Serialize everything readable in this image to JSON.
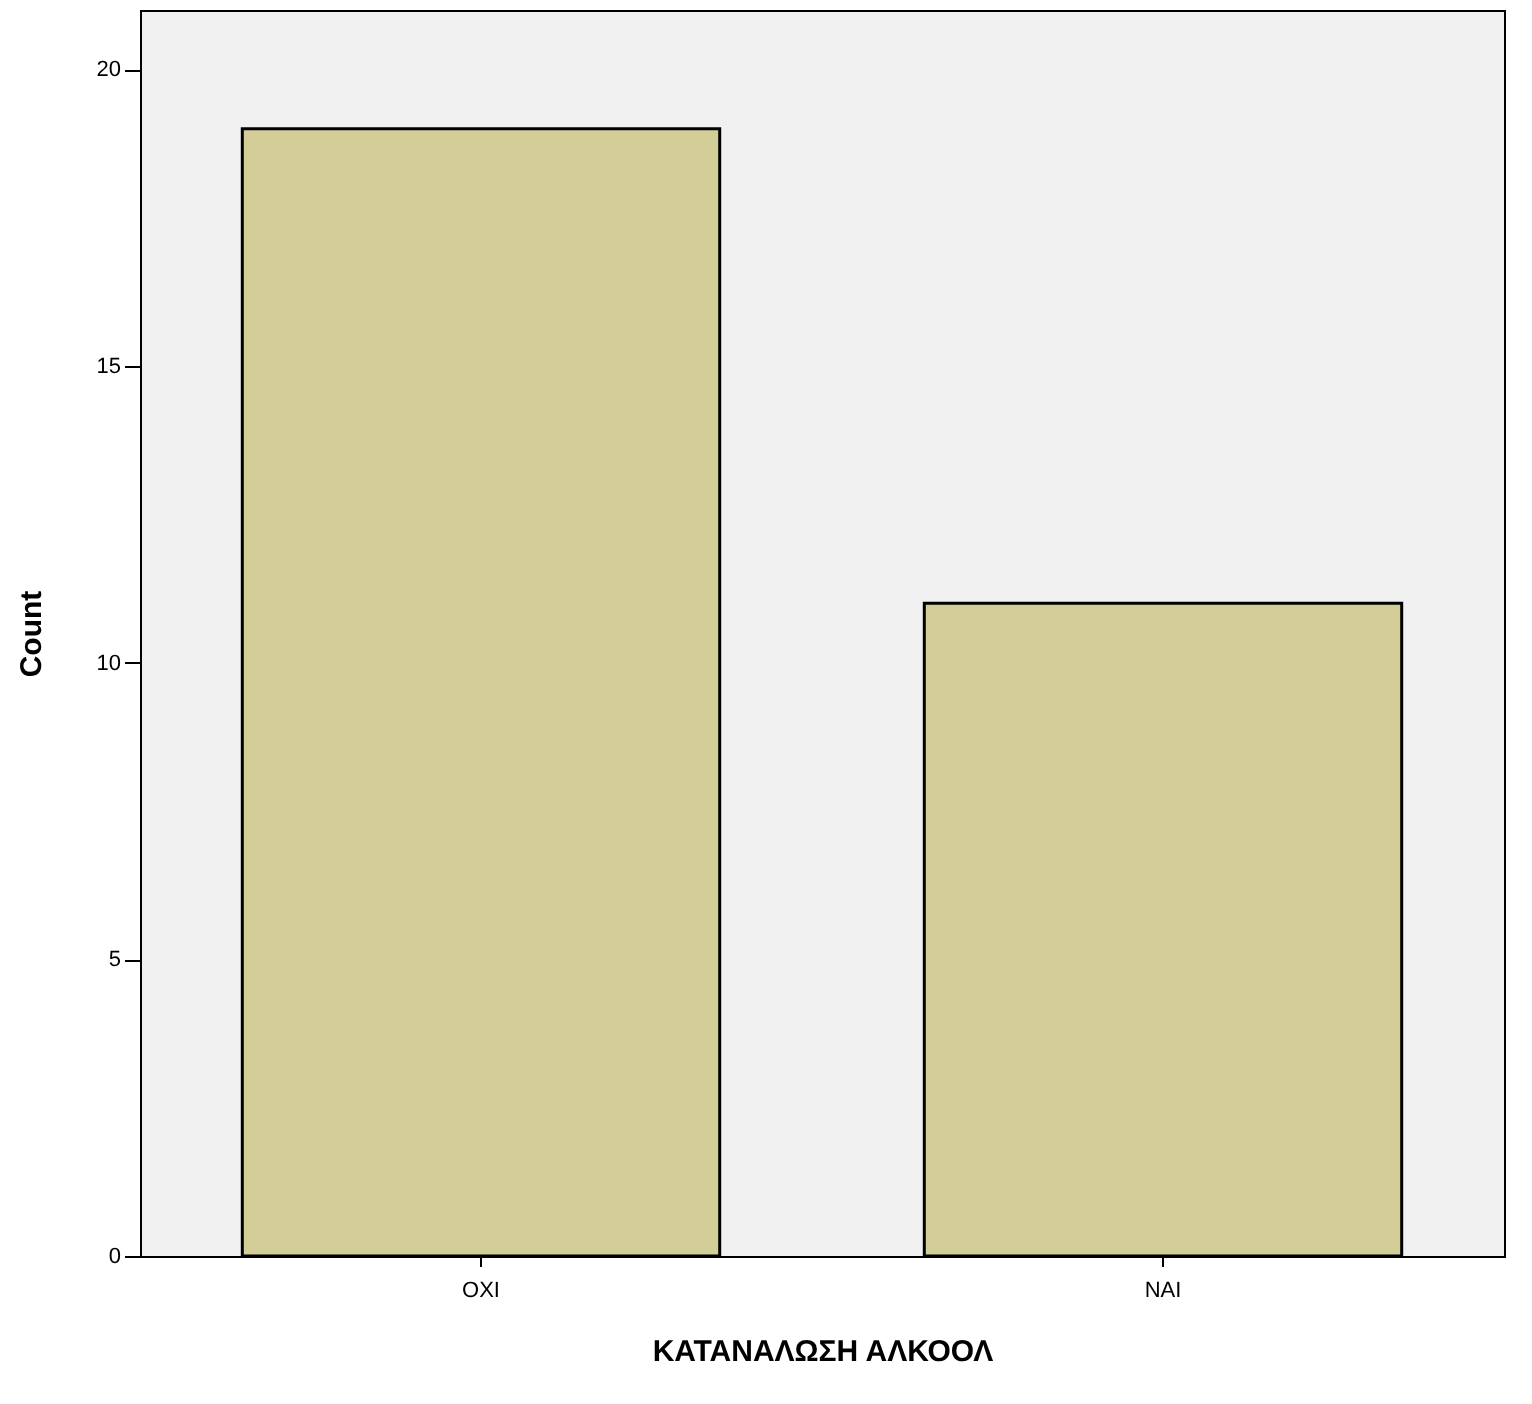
{
  "chart_data": {
    "type": "bar",
    "xlabel": "ΚΑΤΑΝΑΛΩΣΗ ΑΛΚΟΟΛ",
    "ylabel": "Count",
    "categories": [
      "ΟΧΙ",
      "ΝΑΙ"
    ],
    "values": [
      19,
      11
    ],
    "color": "#d3ce97",
    "ylim": [
      0,
      21
    ],
    "yticks": [
      0,
      5,
      10,
      15,
      20
    ]
  }
}
